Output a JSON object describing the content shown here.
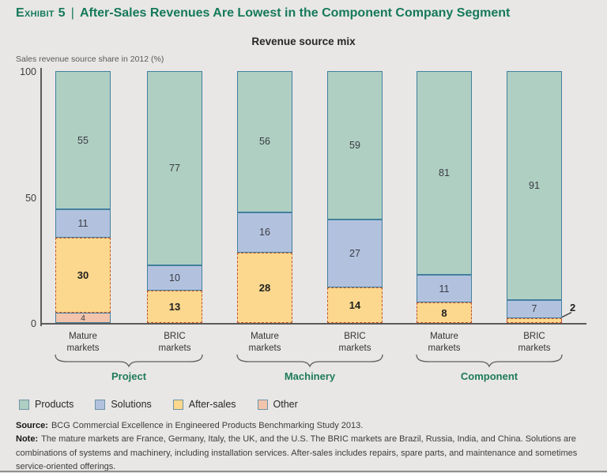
{
  "header": {
    "exhibit_label": "Exhibit 5",
    "separator": "|",
    "title": "After-Sales Revenues Are Lowest in the Component Company Segment",
    "subtitle": "Revenue source mix",
    "unit_label": "Sales revenue source share in 2012 (%)"
  },
  "chart_data": {
    "type": "bar",
    "stacked": true,
    "title": "Revenue source mix",
    "ylabel": "Sales revenue source share in 2012 (%)",
    "ylim": [
      0,
      100
    ],
    "yticks": [
      0,
      50,
      100
    ],
    "grid": false,
    "legend_position": "bottom",
    "highlight_series": "After-sales",
    "stack_order": [
      "Other",
      "After-sales",
      "Solutions",
      "Products"
    ],
    "legend": [
      {
        "name": "Products",
        "color": "#aecfc2"
      },
      {
        "name": "Solutions",
        "color": "#b2c2de"
      },
      {
        "name": "After-sales",
        "color": "#fbd88d"
      },
      {
        "name": "Other",
        "color": "#f2c4ac"
      }
    ],
    "categories": [
      "Mature markets",
      "BRIC markets",
      "Mature markets",
      "BRIC markets",
      "Mature markets",
      "BRIC markets"
    ],
    "series": [
      {
        "name": "Products",
        "values": [
          55,
          77,
          56,
          59,
          81,
          91
        ]
      },
      {
        "name": "Solutions",
        "values": [
          11,
          10,
          16,
          27,
          11,
          7
        ]
      },
      {
        "name": "After-sales",
        "values": [
          30,
          13,
          28,
          14,
          8,
          2
        ]
      },
      {
        "name": "Other",
        "values": [
          4,
          0,
          0,
          0,
          0,
          0
        ]
      }
    ],
    "groups": [
      {
        "label": "Project",
        "bars": [
          {
            "category": "Mature markets",
            "values": {
              "Other": 4,
              "After-sales": 30,
              "Solutions": 11,
              "Products": 55
            }
          },
          {
            "category": "BRIC markets",
            "values": {
              "After-sales": 13,
              "Solutions": 10,
              "Products": 77
            }
          }
        ]
      },
      {
        "label": "Machinery",
        "bars": [
          {
            "category": "Mature markets",
            "values": {
              "After-sales": 28,
              "Solutions": 16,
              "Products": 56
            }
          },
          {
            "category": "BRIC markets",
            "values": {
              "After-sales": 14,
              "Solutions": 27,
              "Products": 59
            }
          }
        ]
      },
      {
        "label": "Component",
        "bars": [
          {
            "category": "Mature markets",
            "values": {
              "After-sales": 8,
              "Solutions": 11,
              "Products": 81
            }
          },
          {
            "category": "BRIC markets",
            "values": {
              "After-sales": 2,
              "Solutions": 7,
              "Products": 91
            }
          }
        ]
      }
    ]
  },
  "footer": {
    "source_label": "Source:",
    "source_text": "BCG Commercial Excellence in Engineered Products Benchmarking Study 2013.",
    "note_label": "Note:",
    "note_text": "The mature markets are France, Germany, Italy, the UK, and the U.S. The BRIC markets are Brazil, Russia, India, and China. Solutions are combinations of systems and machinery, including installation services. After-sales includes repairs, spare parts, and maintenance and sometimes service-oriented offerings."
  }
}
